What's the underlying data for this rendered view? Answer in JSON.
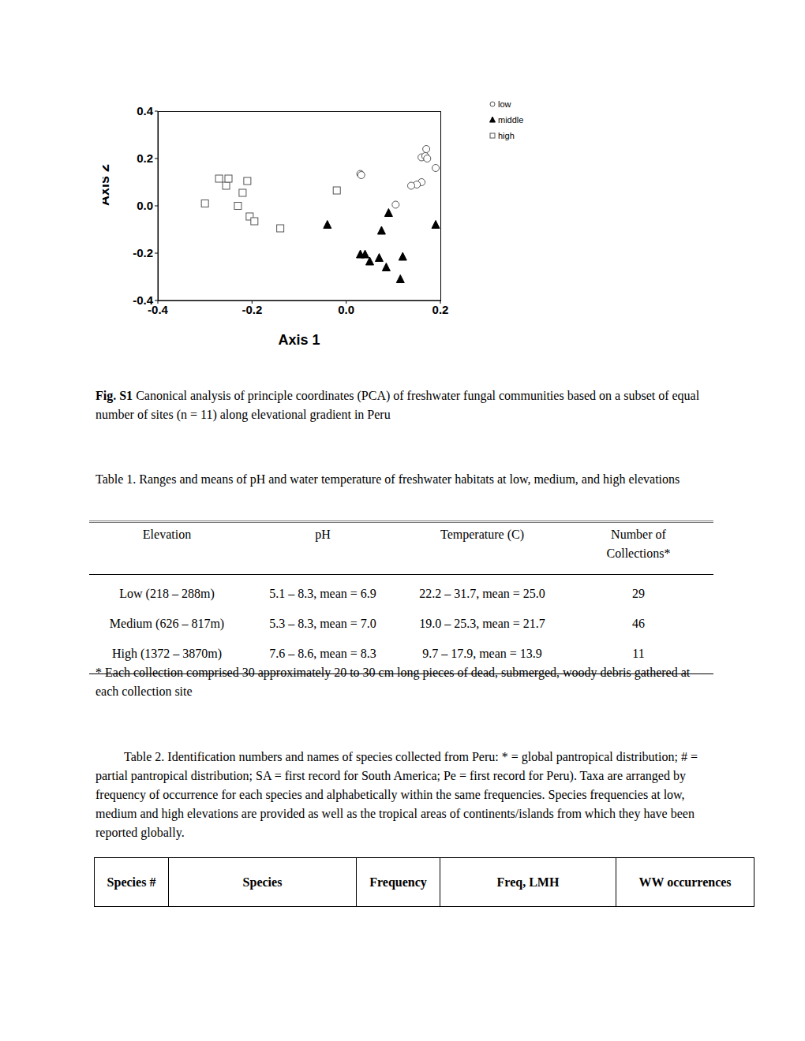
{
  "chart_data": {
    "type": "scatter",
    "x_label": "Axis 1",
    "y_label": "Axis 2",
    "xlim": [
      -0.4,
      0.2
    ],
    "xticks": [
      -0.4,
      -0.2,
      {
        "value": 0,
        "label": "0.0"
      },
      0.2
    ],
    "ylim": [
      -0.4,
      0.4
    ],
    "yticks": [
      -0.4,
      -0.2,
      {
        "value": 0,
        "label": "0.0"
      },
      0.2,
      0.4
    ],
    "legend": "right",
    "series": [
      {
        "name": "low",
        "marker": "open_circle",
        "color": "#555555",
        "x": [
          0.03,
          0.032,
          0.17,
          0.16,
          0.168,
          0.172,
          0.19,
          0.16,
          0.15,
          0.138,
          0.105
        ],
        "values": [
          0.135,
          0.13,
          0.24,
          0.205,
          0.21,
          0.2,
          0.16,
          0.1,
          0.09,
          0.085,
          0.005
        ]
      },
      {
        "name": "middle",
        "marker": "filled_triangle",
        "color": "#000000",
        "x": [
          -0.04,
          0.09,
          0.19,
          0.075,
          0.03,
          0.04,
          0.05,
          0.07,
          0.085,
          0.12,
          0.115
        ],
        "values": [
          -0.08,
          -0.03,
          -0.08,
          -0.105,
          -0.205,
          -0.205,
          -0.235,
          -0.22,
          -0.26,
          -0.215,
          -0.31
        ]
      },
      {
        "name": "high",
        "marker": "open_square",
        "color": "#555555",
        "x": [
          -0.3,
          -0.27,
          -0.255,
          -0.25,
          -0.21,
          -0.22,
          -0.23,
          -0.205,
          -0.195,
          -0.14,
          -0.02
        ],
        "values": [
          0.01,
          0.115,
          0.085,
          0.115,
          0.105,
          0.055,
          0.0,
          -0.045,
          -0.065,
          -0.095,
          0.065
        ]
      }
    ]
  },
  "caption": {
    "label": "Fig. S1",
    "text": "Canonical analysis of principle coordinates (PCA) of freshwater fungal communities based on a subset of equal number of sites (n = 11) along elevational gradient in Peru"
  },
  "table1": {
    "title": "Table 1. Ranges and means of pH and water temperature of freshwater habitats at low, medium, and high elevations",
    "header": [
      "Elevation",
      "pH",
      "Temperature (C)",
      "Number of Collections*"
    ],
    "rows": [
      [
        "Low (218 – 288m)",
        "5.1 – 8.3, mean = 6.9",
        "22.2 – 31.7, mean = 25.0",
        "29"
      ],
      [
        "Medium (626 – 817m)",
        "5.3 – 8.3, mean = 7.0",
        "19.0 – 25.3, mean = 21.7",
        "46"
      ],
      [
        "High (1372 – 3870m)",
        "7.6 – 8.6, mean = 8.3",
        "9.7 – 17.9, mean = 13.9",
        "11"
      ]
    ],
    "footnote": "* Each collection comprised 30 approximately 20 to 30 cm long pieces of dead, submerged, woody debris gathered at each collection site"
  },
  "table2": {
    "title": "Table 2. Identification numbers and names of species collected from Peru: * = global pantropical distribution; # = partial pantropical distribution; SA = first record for South America; Pe = first record for Peru). Taxa are arranged by frequency of occurrence for each species and alphabetically within the same frequencies. Species frequencies at low, medium and high elevations are provided as well as the tropical areas of continents/islands from which they have been reported globally.",
    "header": [
      "Species #",
      "Species",
      "Frequency",
      "Freq, LMH",
      "WW occurrences"
    ]
  }
}
